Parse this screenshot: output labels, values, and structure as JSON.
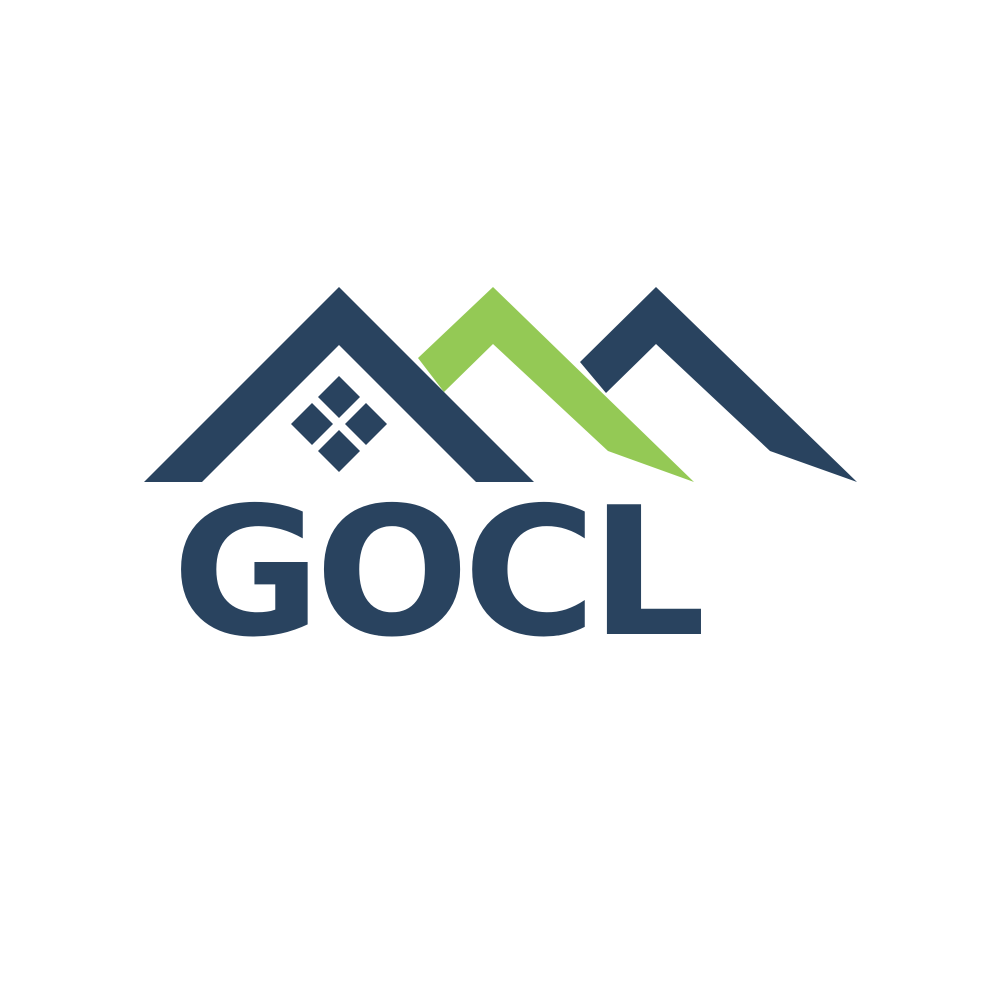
{
  "logo": {
    "wordmark": "GOCL",
    "colors": {
      "navy": "#29435f",
      "green": "#94c955",
      "background": "#ffffff"
    },
    "icons": [
      "house-roof-icon",
      "window-icon",
      "mountain-roof-icon"
    ]
  }
}
